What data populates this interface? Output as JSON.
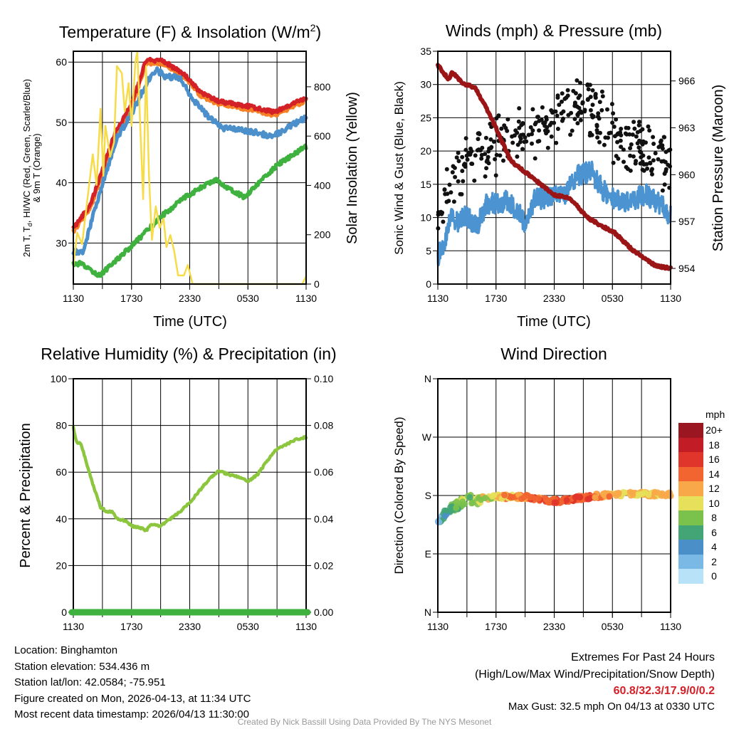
{
  "panels": {
    "temp": {
      "title": "Temperature (F) & Insolation (W/m",
      "title_sup": "2",
      "title_end": ")",
      "ylabel_a": "2m T, T",
      "ylabel_sub": "d",
      "ylabel_b": ", HI/WC (Red, Green, Scarlet/Blue)",
      "ylabel_line2": "& 9m T (Orange)",
      "y2label": "Solar Insolation (Yellow)",
      "xlabel": "Time (UTC)"
    },
    "wind": {
      "title": "Winds (mph) & Pressure (mb)",
      "ylabel": "Sonic Wind & Gust (Blue, Black)",
      "y2label": "Station Pressure (Maroon)",
      "xlabel": "Time (UTC)"
    },
    "rh": {
      "title": "Relative Humidity (%) & Precipitation (in)",
      "ylabel": "Percent & Precipitation"
    },
    "dir": {
      "title": "Wind Direction",
      "ylabel": "Direction (Colored By Speed)"
    }
  },
  "x_ticks": {
    "values": [
      0,
      6,
      12,
      18,
      24
    ],
    "labels": [
      "1130",
      "1730",
      "2330",
      "0530",
      "1130"
    ]
  },
  "colors": {
    "temp_2m": "#d42027",
    "temp_9m": "#f58025",
    "wind_chill": "#4b8fcb",
    "dewpoint": "#3fb13f",
    "insolation": "#f7dc4a",
    "wind_speed": "#4b93d1",
    "gust": "#111111",
    "pressure": "#9b1517",
    "rh": "#8cc63f",
    "precip": "#3fb13f"
  },
  "colorbar": {
    "unit": "mph",
    "bins": [
      {
        "label": "20+",
        "color": "#9a1620"
      },
      {
        "label": "18",
        "color": "#c21c26"
      },
      {
        "label": "16",
        "color": "#e0352a"
      },
      {
        "label": "14",
        "color": "#f26430"
      },
      {
        "label": "12",
        "color": "#f8a848"
      },
      {
        "label": "10",
        "color": "#e6e05a"
      },
      {
        "label": "8",
        "color": "#7bc24c"
      },
      {
        "label": "6",
        "color": "#43a575"
      },
      {
        "label": "4",
        "color": "#4a8fc7"
      },
      {
        "label": "2",
        "color": "#7ab8e6"
      },
      {
        "label": "0",
        "color": "#b8e2f7"
      }
    ]
  },
  "chart_data": [
    {
      "type": "line",
      "title": "Temperature (F) & Insolation (W/m2)",
      "xlabel": "Time (UTC)",
      "x_unit": "hours since 1130 UTC",
      "xlim": [
        0,
        24
      ],
      "ylim": [
        23.2,
        61.8
      ],
      "y2lim": [
        0,
        944
      ],
      "yticks": [
        30,
        40,
        50,
        60
      ],
      "y2ticks": [
        0,
        200,
        400,
        600,
        800
      ],
      "grid": true,
      "series": [
        {
          "name": "2m T",
          "axis": "left",
          "x": [
            0,
            1.8,
            4.3,
            6,
            7.5,
            9.2,
            11.6,
            13.1,
            15,
            18,
            20.7,
            24
          ],
          "y": [
            32.4,
            36.5,
            48.3,
            53,
            60.3,
            60.3,
            57.7,
            55,
            53.5,
            52.7,
            51.7,
            54.1
          ]
        },
        {
          "name": "HI/WC",
          "axis": "left",
          "x": [
            0,
            1,
            1.9,
            3,
            4.5,
            6,
            7.5,
            8.5,
            9.4,
            11,
            12.3,
            13.9,
            15.4,
            18.4,
            20.6,
            24
          ],
          "y": [
            28.7,
            28.3,
            33.8,
            39.7,
            47.5,
            51.4,
            56.4,
            58.8,
            57.7,
            57.3,
            53.8,
            51,
            49.1,
            48.5,
            47.7,
            50.9
          ]
        },
        {
          "name": "Td",
          "axis": "left",
          "x": [
            0,
            0.7,
            2.7,
            6,
            9.2,
            11.6,
            14.6,
            17.6,
            21,
            24
          ],
          "y": [
            26.4,
            26.6,
            24.6,
            29.5,
            34.6,
            37.7,
            40.5,
            37.6,
            42.9,
            46
          ]
        },
        {
          "name": "Solar Insolation",
          "axis": "right",
          "x": [
            0,
            0.4,
            0.9,
            2,
            2.4,
            2.8,
            3.1,
            3.3,
            3.8,
            4.2,
            4.5,
            5,
            5.3,
            5.7,
            6,
            6.4,
            6.6,
            6.9,
            7.2,
            7.5,
            7.8,
            8.1,
            8.5,
            8.9,
            9.3,
            9.6,
            10,
            10.4,
            10.8,
            11.4,
            11.8,
            12.3,
            23.6,
            24
          ],
          "y": [
            75,
            208,
            162,
            526,
            402,
            711,
            439,
            642,
            517,
            575,
            884,
            855,
            700,
            815,
            642,
            902,
            942,
            642,
            344,
            884,
            439,
            179,
            315,
            228,
            266,
            150,
            199,
            133,
            35,
            35,
            78,
            0,
            0,
            32
          ]
        }
      ]
    },
    {
      "type": "line",
      "title": "Winds (mph) & Pressure (mb)",
      "xlabel": "Time (UTC)",
      "xlim": [
        0,
        24
      ],
      "ylim": [
        0,
        35
      ],
      "y2lim": [
        953.0,
        967.9
      ],
      "yticks": [
        0,
        5,
        10,
        15,
        20,
        25,
        30,
        35
      ],
      "y2ticks": [
        954,
        957,
        960,
        963,
        966
      ],
      "grid": true,
      "series": [
        {
          "name": "Sonic Wind",
          "axis": "left",
          "x": [
            0,
            0.9,
            1.3,
            2.1,
            2.8,
            4,
            5,
            7,
            8.7,
            8.9,
            9.9,
            11.6,
            13.1,
            14.3,
            15.8,
            17,
            18.2,
            19.7,
            21.4,
            22.9,
            23.8,
            24
          ],
          "y": [
            4.2,
            7.1,
            10.3,
            9.2,
            10.6,
            8.5,
            12,
            12.4,
            10.6,
            8.1,
            12.7,
            13.1,
            13.5,
            16.3,
            17,
            14.1,
            12.7,
            12.4,
            13.5,
            12,
            10.6,
            10.6
          ]
        },
        {
          "name": "Gust trend",
          "axis": "left",
          "kind": "scatter",
          "x": [
            0,
            1,
            2,
            4,
            6,
            8,
            10,
            12,
            14,
            16,
            18,
            20,
            22,
            24
          ],
          "y": [
            9,
            14,
            17,
            20,
            21,
            22,
            23,
            25,
            27,
            26,
            23,
            21,
            20,
            18
          ]
        },
        {
          "name": "Station Pressure",
          "axis": "right",
          "x": [
            0,
            1.1,
            1.5,
            2.6,
            3.8,
            5.3,
            6.2,
            7.5,
            8.7,
            10.4,
            11.9,
            13.6,
            15.5,
            18.2,
            20.2,
            22.4,
            24
          ],
          "y": [
            967,
            966.1,
            966.6,
            965.8,
            965.6,
            963.9,
            962.7,
            960.9,
            960.3,
            959.5,
            958.7,
            958.5,
            957.2,
            956.3,
            955.1,
            954.2,
            954
          ]
        }
      ]
    },
    {
      "type": "line",
      "title": "Relative Humidity (%) & Precipitation (in)",
      "xlim": [
        0,
        24
      ],
      "ylim": [
        0,
        100
      ],
      "y2lim": [
        0,
        0.1
      ],
      "yticks": [
        0,
        20,
        40,
        60,
        80,
        100
      ],
      "y2ticks": [
        "0.00",
        "0.02",
        "0.04",
        "0.06",
        "0.08",
        "0.10"
      ],
      "grid": true,
      "series": [
        {
          "name": "RH",
          "x": [
            0,
            0.3,
            0.8,
            1.5,
            2,
            2.8,
            3.5,
            4,
            4.5,
            5.5,
            6,
            7,
            7.5,
            8,
            9,
            10,
            11,
            12,
            13,
            14,
            15,
            16,
            17,
            18,
            19,
            20,
            21,
            22,
            23,
            24
          ],
          "y": [
            79,
            73,
            72,
            62,
            55,
            45,
            43,
            43,
            40,
            39,
            37,
            36,
            35,
            37.5,
            37,
            40,
            43,
            47,
            52,
            57,
            60.5,
            59,
            58,
            56,
            59,
            65,
            70,
            72,
            74,
            75
          ]
        },
        {
          "name": "Precipitation",
          "x": [
            0,
            24
          ],
          "y": [
            0,
            0
          ]
        }
      ]
    },
    {
      "type": "scatter",
      "title": "Wind Direction",
      "ylabel": "Direction (Colored By Speed)",
      "xlim": [
        0,
        24
      ],
      "ylim": [
        0,
        360
      ],
      "yticks": [
        0,
        90,
        180,
        270,
        360
      ],
      "yticklabels": [
        "N",
        "E",
        "S",
        "W",
        "N"
      ],
      "grid": true,
      "direction_trend": {
        "x": [
          0,
          1,
          2,
          3,
          4,
          6,
          9,
          10,
          12.5,
          15,
          18,
          24
        ],
        "y": [
          135,
          157,
          165,
          174,
          173,
          178,
          178,
          175,
          171,
          177,
          182,
          182
        ]
      },
      "speed_trend": {
        "x": [
          0,
          1,
          2,
          4,
          6,
          8,
          10,
          12,
          14,
          15.5,
          17,
          20,
          24
        ],
        "y": [
          4,
          7,
          9,
          10,
          12,
          13,
          15,
          15,
          17,
          16,
          13,
          12,
          12
        ]
      },
      "legend": "right colorbar"
    }
  ],
  "footer": {
    "location": "Location: Binghamton",
    "elevation": "Station elevation: 534.436 m",
    "latlon": "Station lat/lon: 42.0584; -75.951",
    "created": "Figure created on Mon, 2026-04-13, at 11:34 UTC",
    "recent": "Most recent data timestamp: 2026/04/13 11:30:00",
    "extremes_title": "Extremes For Past 24 Hours",
    "extremes_legend": "(High/Low/Max Wind/Precipitation/Snow Depth)",
    "extremes_values": "60.8/32.3/17.9/0/0.2",
    "max_gust": "Max Gust: 32.5 mph On 04/13 at 0330 UTC",
    "credit": "Created By Nick Bassill Using Data Provided By The NYS Mesonet"
  }
}
